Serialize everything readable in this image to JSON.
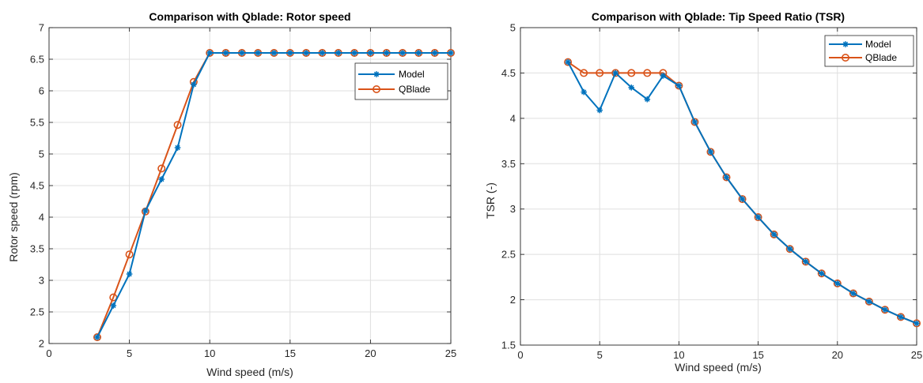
{
  "colors": {
    "model": "#0072BD",
    "qblade": "#D95319",
    "grid": "#DFDFDF",
    "axis": "#262626"
  },
  "chart_data": [
    {
      "type": "line",
      "title": "Comparison with Qblade: Rotor speed",
      "xlabel": "Wind speed (m/s)",
      "ylabel": "Rotor speed (rpm)",
      "xlim": [
        0,
        25
      ],
      "ylim": [
        2,
        7
      ],
      "xticks": [
        "0",
        "5",
        "10",
        "15",
        "20",
        "25"
      ],
      "yticks": [
        "2",
        "2.5",
        "3",
        "3.5",
        "4",
        "4.5",
        "5",
        "5.5",
        "6",
        "6.5",
        "7"
      ],
      "grid": true,
      "legend": "top-right",
      "x": [
        3,
        4,
        5,
        6,
        7,
        8,
        9,
        10,
        11,
        12,
        13,
        14,
        15,
        16,
        17,
        18,
        19,
        20,
        21,
        22,
        23,
        24,
        25
      ],
      "series": [
        {
          "name": "Model",
          "marker": "asterisk",
          "values": [
            2.1,
            2.6,
            3.1,
            4.1,
            4.6,
            5.1,
            6.1,
            6.6,
            6.6,
            6.6,
            6.6,
            6.6,
            6.6,
            6.6,
            6.6,
            6.6,
            6.6,
            6.6,
            6.6,
            6.6,
            6.6,
            6.6,
            6.6
          ]
        },
        {
          "name": "QBlade",
          "marker": "circle",
          "values": [
            2.1,
            2.73,
            3.41,
            4.09,
            4.77,
            5.46,
            6.14,
            6.6,
            6.6,
            6.6,
            6.6,
            6.6,
            6.6,
            6.6,
            6.6,
            6.6,
            6.6,
            6.6,
            6.6,
            6.6,
            6.6,
            6.6,
            6.6
          ]
        }
      ]
    },
    {
      "type": "line",
      "title": "Comparison with Qblade: Tip Speed Ratio (TSR)",
      "xlabel": "Wind speed (m/s)",
      "ylabel": "TSR (-)",
      "xlim": [
        0,
        25
      ],
      "ylim": [
        1.5,
        5
      ],
      "xticks": [
        "0",
        "5",
        "10",
        "15",
        "20",
        "25"
      ],
      "yticks": [
        "1.5",
        "2",
        "2.5",
        "3",
        "3.5",
        "4",
        "4.5",
        "5"
      ],
      "grid": true,
      "legend": "top-right",
      "x": [
        3,
        4,
        5,
        6,
        7,
        8,
        9,
        10,
        11,
        12,
        13,
        14,
        15,
        16,
        17,
        18,
        19,
        20,
        21,
        22,
        23,
        24,
        25
      ],
      "series": [
        {
          "name": "Model",
          "marker": "asterisk",
          "values": [
            4.62,
            4.29,
            4.09,
            4.5,
            4.34,
            4.21,
            4.47,
            4.36,
            3.96,
            3.63,
            3.35,
            3.11,
            2.91,
            2.72,
            2.56,
            2.42,
            2.29,
            2.18,
            2.07,
            1.98,
            1.89,
            1.81,
            1.74
          ]
        },
        {
          "name": "QBlade",
          "marker": "circle",
          "values": [
            4.62,
            4.5,
            4.5,
            4.5,
            4.5,
            4.5,
            4.5,
            4.36,
            3.96,
            3.63,
            3.35,
            3.11,
            2.91,
            2.72,
            2.56,
            2.42,
            2.29,
            2.18,
            2.07,
            1.98,
            1.89,
            1.81,
            1.74
          ]
        }
      ]
    }
  ]
}
